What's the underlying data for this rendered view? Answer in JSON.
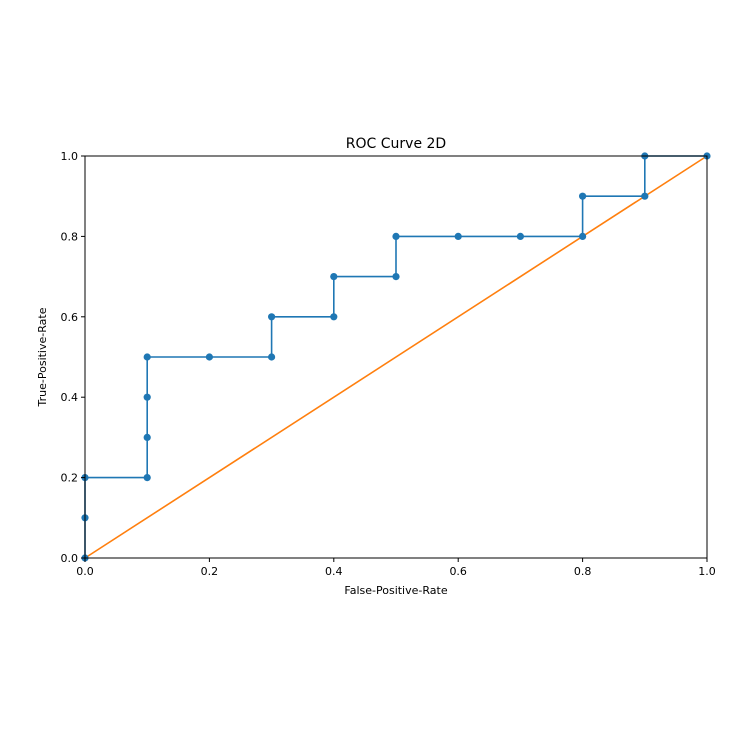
{
  "chart_data": {
    "type": "line",
    "title": "ROC Curve 2D",
    "xlabel": "False-Positive-Rate",
    "ylabel": "True-Positive-Rate",
    "xlim": [
      0.0,
      1.0
    ],
    "ylim": [
      0.0,
      1.0
    ],
    "xticks": [
      "0.0",
      "0.2",
      "0.4",
      "0.6",
      "0.8",
      "1.0"
    ],
    "yticks": [
      "0.0",
      "0.2",
      "0.4",
      "0.6",
      "0.8",
      "1.0"
    ],
    "grid": false,
    "colors": {
      "roc": "#1f77b4",
      "diagonal": "#ff7f0e"
    },
    "series": [
      {
        "style": "step-with-markers",
        "x": [
          0.0,
          0.0,
          0.0,
          0.1,
          0.1,
          0.1,
          0.1,
          0.2,
          0.3,
          0.3,
          0.4,
          0.4,
          0.5,
          0.5,
          0.6,
          0.7,
          0.8,
          0.8,
          0.9,
          0.9,
          1.0
        ],
        "y": [
          0.0,
          0.1,
          0.2,
          0.2,
          0.3,
          0.4,
          0.5,
          0.5,
          0.5,
          0.6,
          0.6,
          0.7,
          0.7,
          0.8,
          0.8,
          0.8,
          0.8,
          0.9,
          0.9,
          1.0,
          1.0
        ]
      },
      {
        "style": "line",
        "x": [
          0.0,
          1.0
        ],
        "y": [
          0.0,
          1.0
        ]
      }
    ]
  }
}
